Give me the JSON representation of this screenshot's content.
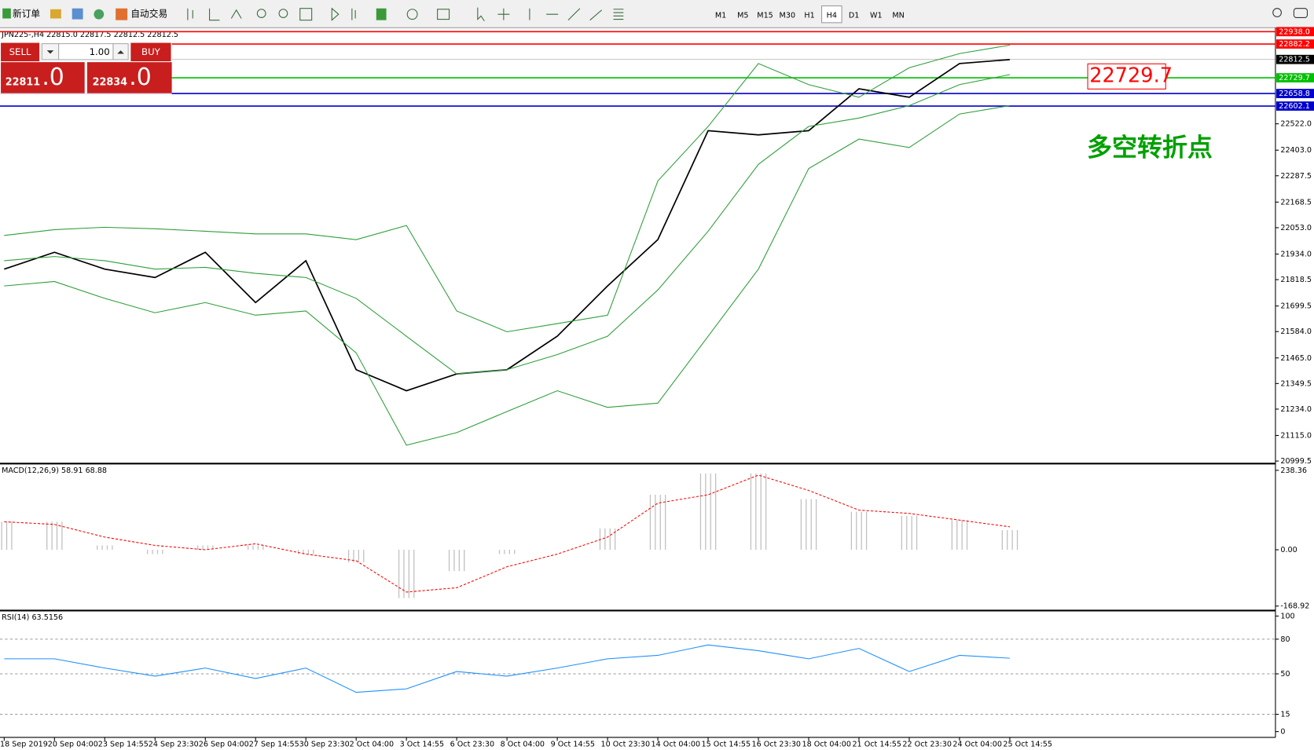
{
  "toolbar": {
    "new_order": "新订单",
    "auto_trading": "自动交易",
    "timeframes": [
      "M1",
      "M5",
      "M15",
      "M30",
      "H1",
      "H4",
      "D1",
      "W1",
      "MN"
    ],
    "active_timeframe": "H4"
  },
  "trade_panel": {
    "sell": "SELL",
    "buy": "BUY",
    "lots": "1.00",
    "bid_big": "22811",
    "bid_small": ".0",
    "ask_big": "22834",
    "ask_small": ".0"
  },
  "chart_data": [
    {
      "type": "line",
      "title": "JPN225-,H4  22815.0 22817.5 22812.5 22812.5",
      "categories": [
        "18 Sep 2019",
        "20 Sep 04:00",
        "23 Sep 14:55",
        "24 Sep 23:30",
        "26 Sep 04:00",
        "27 Sep 14:55",
        "30 Sep 23:30",
        "2 Oct 04:00",
        "3 Oct 14:55",
        "6 Oct 23:30",
        "8 Oct 04:00",
        "9 Oct 14:55",
        "10 Oct 23:30",
        "14 Oct 04:00",
        "15 Oct 14:55",
        "16 Oct 23:30",
        "18 Oct 04:00",
        "21 Oct 14:55",
        "22 Oct 23:30",
        "24 Oct 04:00",
        "25 Oct 14:55"
      ],
      "series": [
        {
          "color": "#000000",
          "values": [
            21866,
            21942,
            21866,
            21828,
            21942,
            21715,
            21904,
            21412,
            21317,
            21393,
            21412,
            21563,
            21790,
            21999,
            22491,
            22472,
            22491,
            22680,
            22642,
            22794,
            22812
          ]
        },
        {
          "color": "#2e9e3a",
          "values": [
            22018,
            22044,
            22055,
            22048,
            22037,
            22025,
            22025,
            21999,
            22063,
            21677,
            21583,
            21620,
            21658,
            22264,
            22510,
            22794,
            22699,
            22642,
            22775,
            22839,
            22877
          ]
        },
        {
          "color": "#2e9e3a",
          "values": [
            21904,
            21923,
            21904,
            21866,
            21874,
            21847,
            21828,
            21734,
            21563,
            21393,
            21412,
            21480,
            21563,
            21772,
            22037,
            22339,
            22510,
            22548,
            22604,
            22699,
            22744
          ]
        },
        {
          "color": "#2e9e3a",
          "values": [
            21790,
            21810,
            21734,
            21669,
            21715,
            21658,
            21677,
            21488,
            21071,
            21128,
            21223,
            21317,
            21242,
            21261,
            21563,
            21866,
            22320,
            22453,
            22415,
            22566,
            22604
          ]
        }
      ],
      "ylim": [
        20988,
        22952
      ],
      "yticks": [
        {
          "value": 22522.0,
          "label": "22522.0"
        },
        {
          "value": 22403.0,
          "label": "22403.0"
        },
        22287.5,
        22168.5,
        {
          "value": 22053.0,
          "label": "22053.0"
        },
        {
          "value": 21934.0,
          "label": "21934.0"
        },
        21818.5,
        21699.5,
        {
          "value": 21584.0,
          "label": "21584.0"
        },
        {
          "value": 21465.0,
          "label": "21465.0"
        },
        21349.5,
        {
          "value": 21234.0,
          "label": "21234.0"
        },
        {
          "value": 21115.0,
          "label": "21115.0"
        },
        20999.5
      ],
      "levels": [
        {
          "value": 22938.0,
          "label": "22938.0",
          "color": "#ff0000"
        },
        {
          "value": 22882.2,
          "label": "22882.2",
          "color": "#ff0000"
        },
        {
          "value": 22812.5,
          "label": "22812.5",
          "color": "#000000"
        },
        {
          "value": 22729.7,
          "label": "22729.7",
          "color": "#00c000"
        },
        {
          "value": 22658.8,
          "label": "22658.8",
          "color": "#0000cc"
        },
        {
          "value": 22602.1,
          "label": "22602.1",
          "color": "#0000cc"
        }
      ],
      "annotations": [
        {
          "text": "22729.7",
          "color": "#ff0000"
        },
        {
          "text": "多空转折点",
          "color": "#00a000"
        }
      ]
    },
    {
      "type": "bar",
      "title": "MACD(12,26,9) 58.91 68.88",
      "series": [
        {
          "type": "bar",
          "color": "#c0c0c0",
          "values": [
            84,
            84,
            13,
            -13,
            13,
            13,
            -13,
            -38,
            -145,
            -64,
            -13,
            0,
            64,
            165,
            229,
            229,
            152,
            114,
            102,
            89,
            58.91
          ]
        },
        {
          "type": "line",
          "dash": true,
          "color": "#ff0000",
          "values": [
            84,
            76,
            38,
            13,
            0,
            18,
            -13,
            -33,
            -127,
            -114,
            -51,
            -13,
            38,
            140,
            165,
            224,
            178,
            119,
            109,
            89,
            68.88
          ]
        }
      ],
      "ylim": [
        -180,
        256
      ],
      "yticks": [
        238.36,
        {
          "value": 0,
          "label": "0.00"
        },
        -168.92
      ]
    },
    {
      "type": "line",
      "title": "RSI(14) 63.5156",
      "series": [
        {
          "color": "#1e90ff",
          "values": [
            63,
            63,
            55,
            48,
            55,
            46,
            55,
            34,
            37,
            52,
            48,
            55,
            63,
            66,
            75,
            70,
            63,
            72,
            52,
            66,
            63.5156
          ]
        }
      ],
      "ylim": [
        -5,
        104
      ],
      "yticks": [
        100,
        80,
        50,
        15,
        0
      ],
      "levels": [
        80,
        50,
        15
      ]
    }
  ]
}
